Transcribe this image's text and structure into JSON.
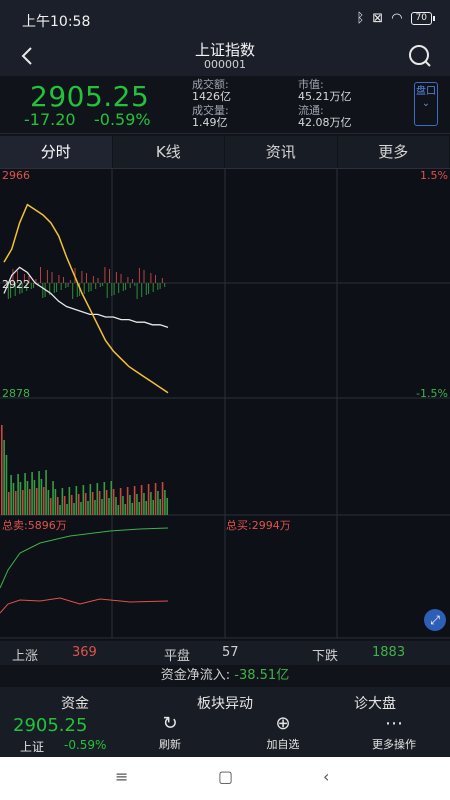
{
  "status": {
    "time": "上午10:58",
    "battery": "70"
  },
  "header": {
    "title": "上证指数",
    "code": "000001"
  },
  "quote": {
    "price": "2905.25",
    "change": "-17.20",
    "change_pct": "-0.59%",
    "turnover_label": "成交额:",
    "turnover": "1426亿",
    "volume_label": "成交量:",
    "volume": "1.49亿",
    "mktcap_label": "市值:",
    "mktcap": "45.21万亿",
    "float_label": "流通:",
    "float": "42.08万亿",
    "pankou_label": "盘口"
  },
  "tabs": [
    "分时",
    "K线",
    "资讯",
    "更多"
  ],
  "chart": {
    "y_high": "2966",
    "y_mid": "2922",
    "y_low": "2878",
    "pct_high": "1.5%",
    "pct_low": "-1.5%",
    "sell_total": "总卖:5896万",
    "buy_total": "总买:2994万"
  },
  "chart_data": {
    "type": "line",
    "title": "",
    "ylim": [
      2878,
      2966
    ],
    "prev_close": 2922,
    "series": [
      {
        "values": [
          2930,
          2935,
          2945,
          2952,
          2950,
          2948,
          2945,
          2940,
          2932,
          2925,
          2918,
          2912,
          2906,
          2900,
          2896,
          2893,
          2890,
          2888,
          2886,
          2884,
          2882,
          2880
        ]
      },
      {
        "values": [
          2918,
          2925,
          2928,
          2926,
          2922,
          2920,
          2918,
          2915,
          2913,
          2912,
          2911,
          2910,
          2910,
          2909,
          2909,
          2908,
          2908,
          2907,
          2907,
          2906,
          2906,
          2905
        ]
      }
    ]
  },
  "breadth": {
    "up_label": "上涨",
    "up": "369",
    "flat_label": "平盘",
    "flat": "57",
    "down_label": "下跌",
    "down": "1883"
  },
  "flow": {
    "label": "资金净流入:",
    "value": "-38.51亿"
  },
  "bottom": {
    "tab1": "资金",
    "tab2": "板块异动",
    "tab3": "诊大盘",
    "mini_price": "2905.25",
    "mini_name": "上证",
    "mini_pct": "-0.59%",
    "refresh": "刷新",
    "add": "加自选",
    "more": "更多操作"
  }
}
